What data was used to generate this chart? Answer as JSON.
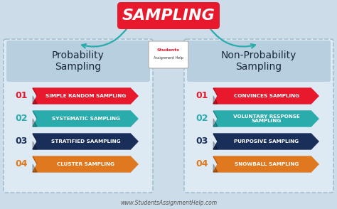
{
  "bg_color": "#ccdce8",
  "title": "SAMPLING",
  "title_bg": "#e8192c",
  "title_text_color": "#ffffff",
  "left_heading": "Probability\nSampling",
  "right_heading": "Non-Probability\nSampling",
  "heading_bg": "#b8cfe0",
  "left_items": [
    {
      "num": "01",
      "text": "SIMPLE RANDOM SAMPLING",
      "color": "#e8192c",
      "num_color": "#e8192c"
    },
    {
      "num": "02",
      "text": "SYSTEMATIC SAMPLING",
      "color": "#2aacac",
      "num_color": "#2aacac"
    },
    {
      "num": "03",
      "text": "STRATIFIED SAAMPLING",
      "color": "#1a2e5a",
      "num_color": "#1a2e5a"
    },
    {
      "num": "04",
      "text": "CLUSTER SAMPLING",
      "color": "#e07820",
      "num_color": "#e07820"
    }
  ],
  "right_items": [
    {
      "num": "01",
      "text": "CONVINCES SAMPLING",
      "color": "#e8192c",
      "num_color": "#e8192c"
    },
    {
      "num": "02",
      "text": "VOLUNTARY RESPONSE\nSAMPLING",
      "color": "#2aacac",
      "num_color": "#2aacac"
    },
    {
      "num": "03",
      "text": "PURPOSIVE SAMPLING",
      "color": "#1a2e5a",
      "num_color": "#1a2e5a"
    },
    {
      "num": "04",
      "text": "SNOWBALL SAMPLING",
      "color": "#e07820",
      "num_color": "#e07820"
    }
  ],
  "footer": "www.StudentsAssignmentHelp.com",
  "arrow_color": "#2aacac",
  "panel_bg": "#ddeaf4",
  "panel_border": "#a0bccc"
}
